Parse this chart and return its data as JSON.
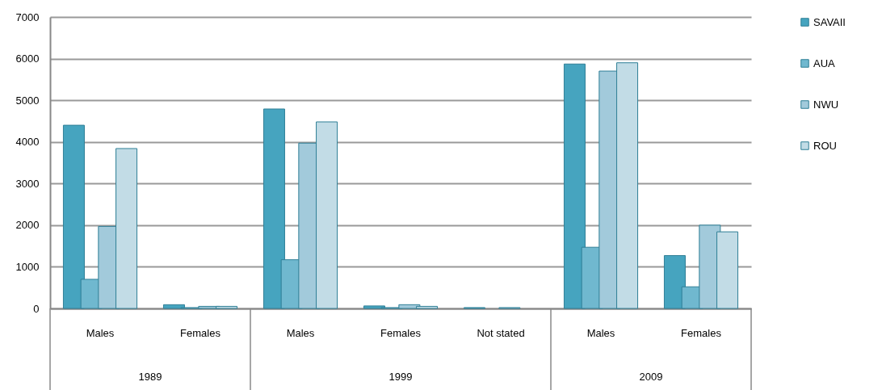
{
  "chart_data": {
    "type": "bar",
    "categories": [
      "Males",
      "Females",
      "Males",
      "Females",
      "Not stated",
      "Males",
      "Females"
    ],
    "series": [
      {
        "name": "SAVAII",
        "color": "#46a4bf",
        "values": [
          4400,
          90,
          4790,
          60,
          20,
          5870,
          1270
        ]
      },
      {
        "name": "AUA",
        "color": "#70b8cf",
        "values": [
          700,
          20,
          1170,
          20,
          null,
          1470,
          520
        ]
      },
      {
        "name": "NWU",
        "color": "#a2cadb",
        "values": [
          1970,
          50,
          3970,
          90,
          20,
          5700,
          2000
        ]
      },
      {
        "name": "ROU",
        "color": "#c2dce6",
        "values": [
          3840,
          50,
          4480,
          50,
          null,
          5900,
          1840
        ]
      }
    ],
    "ylim": [
      0,
      7000
    ],
    "yticks": [
      0,
      1000,
      2000,
      3000,
      4000,
      5000,
      6000,
      7000
    ],
    "grid": "y",
    "legend": "right",
    "annotations": [
      "1989",
      "1999",
      "2009"
    ]
  }
}
